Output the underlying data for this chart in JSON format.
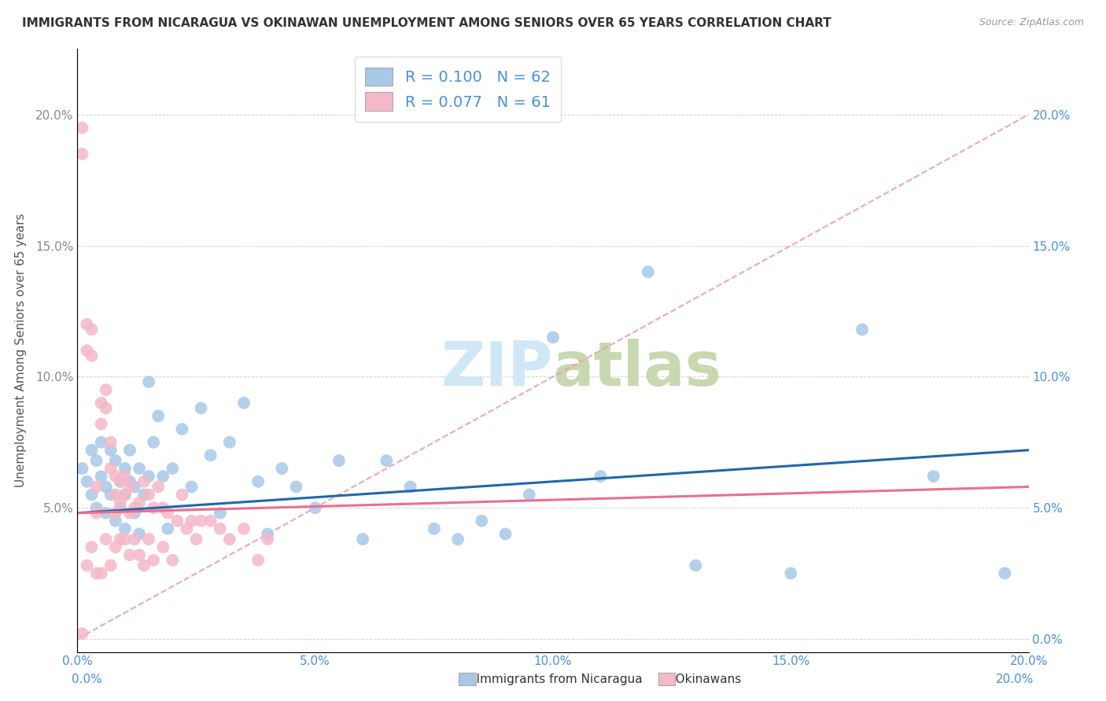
{
  "title": "IMMIGRANTS FROM NICARAGUA VS OKINAWAN UNEMPLOYMENT AMONG SENIORS OVER 65 YEARS CORRELATION CHART",
  "source": "Source: ZipAtlas.com",
  "ylabel": "Unemployment Among Seniors over 65 years",
  "legend_label_blue": "Immigrants from Nicaragua",
  "legend_label_pink": "Okinawans",
  "R_blue": 0.1,
  "N_blue": 62,
  "R_pink": 0.077,
  "N_pink": 61,
  "xlim": [
    0.0,
    0.2
  ],
  "ylim": [
    -0.005,
    0.225
  ],
  "yticks": [
    0.0,
    0.05,
    0.1,
    0.15,
    0.2
  ],
  "xticks": [
    0.0,
    0.05,
    0.1,
    0.15,
    0.2
  ],
  "blue_color": "#a8c8e8",
  "pink_color": "#f4b8c8",
  "blue_line_color": "#2166ac",
  "pink_line_color": "#e87090",
  "diagonal_color": "#e8a0b0",
  "title_color": "#333333",
  "right_tick_color": "#4a90d9",
  "watermark_color": "#d0e8f5",
  "blue_scatter_x": [
    0.001,
    0.002,
    0.003,
    0.003,
    0.004,
    0.004,
    0.005,
    0.005,
    0.006,
    0.006,
    0.007,
    0.007,
    0.008,
    0.008,
    0.009,
    0.009,
    0.01,
    0.01,
    0.01,
    0.011,
    0.011,
    0.012,
    0.012,
    0.013,
    0.013,
    0.014,
    0.015,
    0.015,
    0.016,
    0.017,
    0.018,
    0.019,
    0.02,
    0.022,
    0.024,
    0.026,
    0.028,
    0.03,
    0.032,
    0.035,
    0.038,
    0.04,
    0.043,
    0.046,
    0.05,
    0.055,
    0.06,
    0.065,
    0.07,
    0.075,
    0.08,
    0.085,
    0.09,
    0.095,
    0.1,
    0.11,
    0.12,
    0.13,
    0.15,
    0.165,
    0.18,
    0.195
  ],
  "blue_scatter_y": [
    0.065,
    0.06,
    0.072,
    0.055,
    0.068,
    0.05,
    0.062,
    0.075,
    0.058,
    0.048,
    0.072,
    0.055,
    0.068,
    0.045,
    0.06,
    0.05,
    0.065,
    0.055,
    0.042,
    0.06,
    0.072,
    0.058,
    0.048,
    0.065,
    0.04,
    0.055,
    0.098,
    0.062,
    0.075,
    0.085,
    0.062,
    0.042,
    0.065,
    0.08,
    0.058,
    0.088,
    0.07,
    0.048,
    0.075,
    0.09,
    0.06,
    0.04,
    0.065,
    0.058,
    0.05,
    0.068,
    0.038,
    0.068,
    0.058,
    0.042,
    0.038,
    0.045,
    0.04,
    0.055,
    0.115,
    0.062,
    0.14,
    0.028,
    0.025,
    0.118,
    0.062,
    0.025
  ],
  "pink_scatter_x": [
    0.001,
    0.001,
    0.002,
    0.002,
    0.002,
    0.003,
    0.003,
    0.003,
    0.004,
    0.004,
    0.004,
    0.005,
    0.005,
    0.005,
    0.006,
    0.006,
    0.006,
    0.007,
    0.007,
    0.007,
    0.008,
    0.008,
    0.008,
    0.008,
    0.009,
    0.009,
    0.009,
    0.01,
    0.01,
    0.01,
    0.011,
    0.011,
    0.011,
    0.012,
    0.012,
    0.013,
    0.013,
    0.014,
    0.014,
    0.015,
    0.015,
    0.016,
    0.016,
    0.017,
    0.018,
    0.018,
    0.019,
    0.02,
    0.021,
    0.022,
    0.023,
    0.024,
    0.025,
    0.026,
    0.028,
    0.03,
    0.032,
    0.035,
    0.038,
    0.04,
    0.001
  ],
  "pink_scatter_y": [
    0.195,
    0.185,
    0.12,
    0.11,
    0.028,
    0.118,
    0.108,
    0.035,
    0.058,
    0.048,
    0.025,
    0.09,
    0.082,
    0.025,
    0.095,
    0.088,
    0.038,
    0.075,
    0.065,
    0.028,
    0.062,
    0.055,
    0.048,
    0.035,
    0.06,
    0.052,
    0.038,
    0.062,
    0.055,
    0.038,
    0.058,
    0.048,
    0.032,
    0.05,
    0.038,
    0.052,
    0.032,
    0.06,
    0.028,
    0.055,
    0.038,
    0.05,
    0.03,
    0.058,
    0.05,
    0.035,
    0.048,
    0.03,
    0.045,
    0.055,
    0.042,
    0.045,
    0.038,
    0.045,
    0.045,
    0.042,
    0.038,
    0.042,
    0.03,
    0.038,
    0.002
  ],
  "blue_line_start_y": 0.048,
  "blue_line_end_y": 0.072,
  "pink_line_start_y": 0.048,
  "pink_line_end_y": 0.058
}
